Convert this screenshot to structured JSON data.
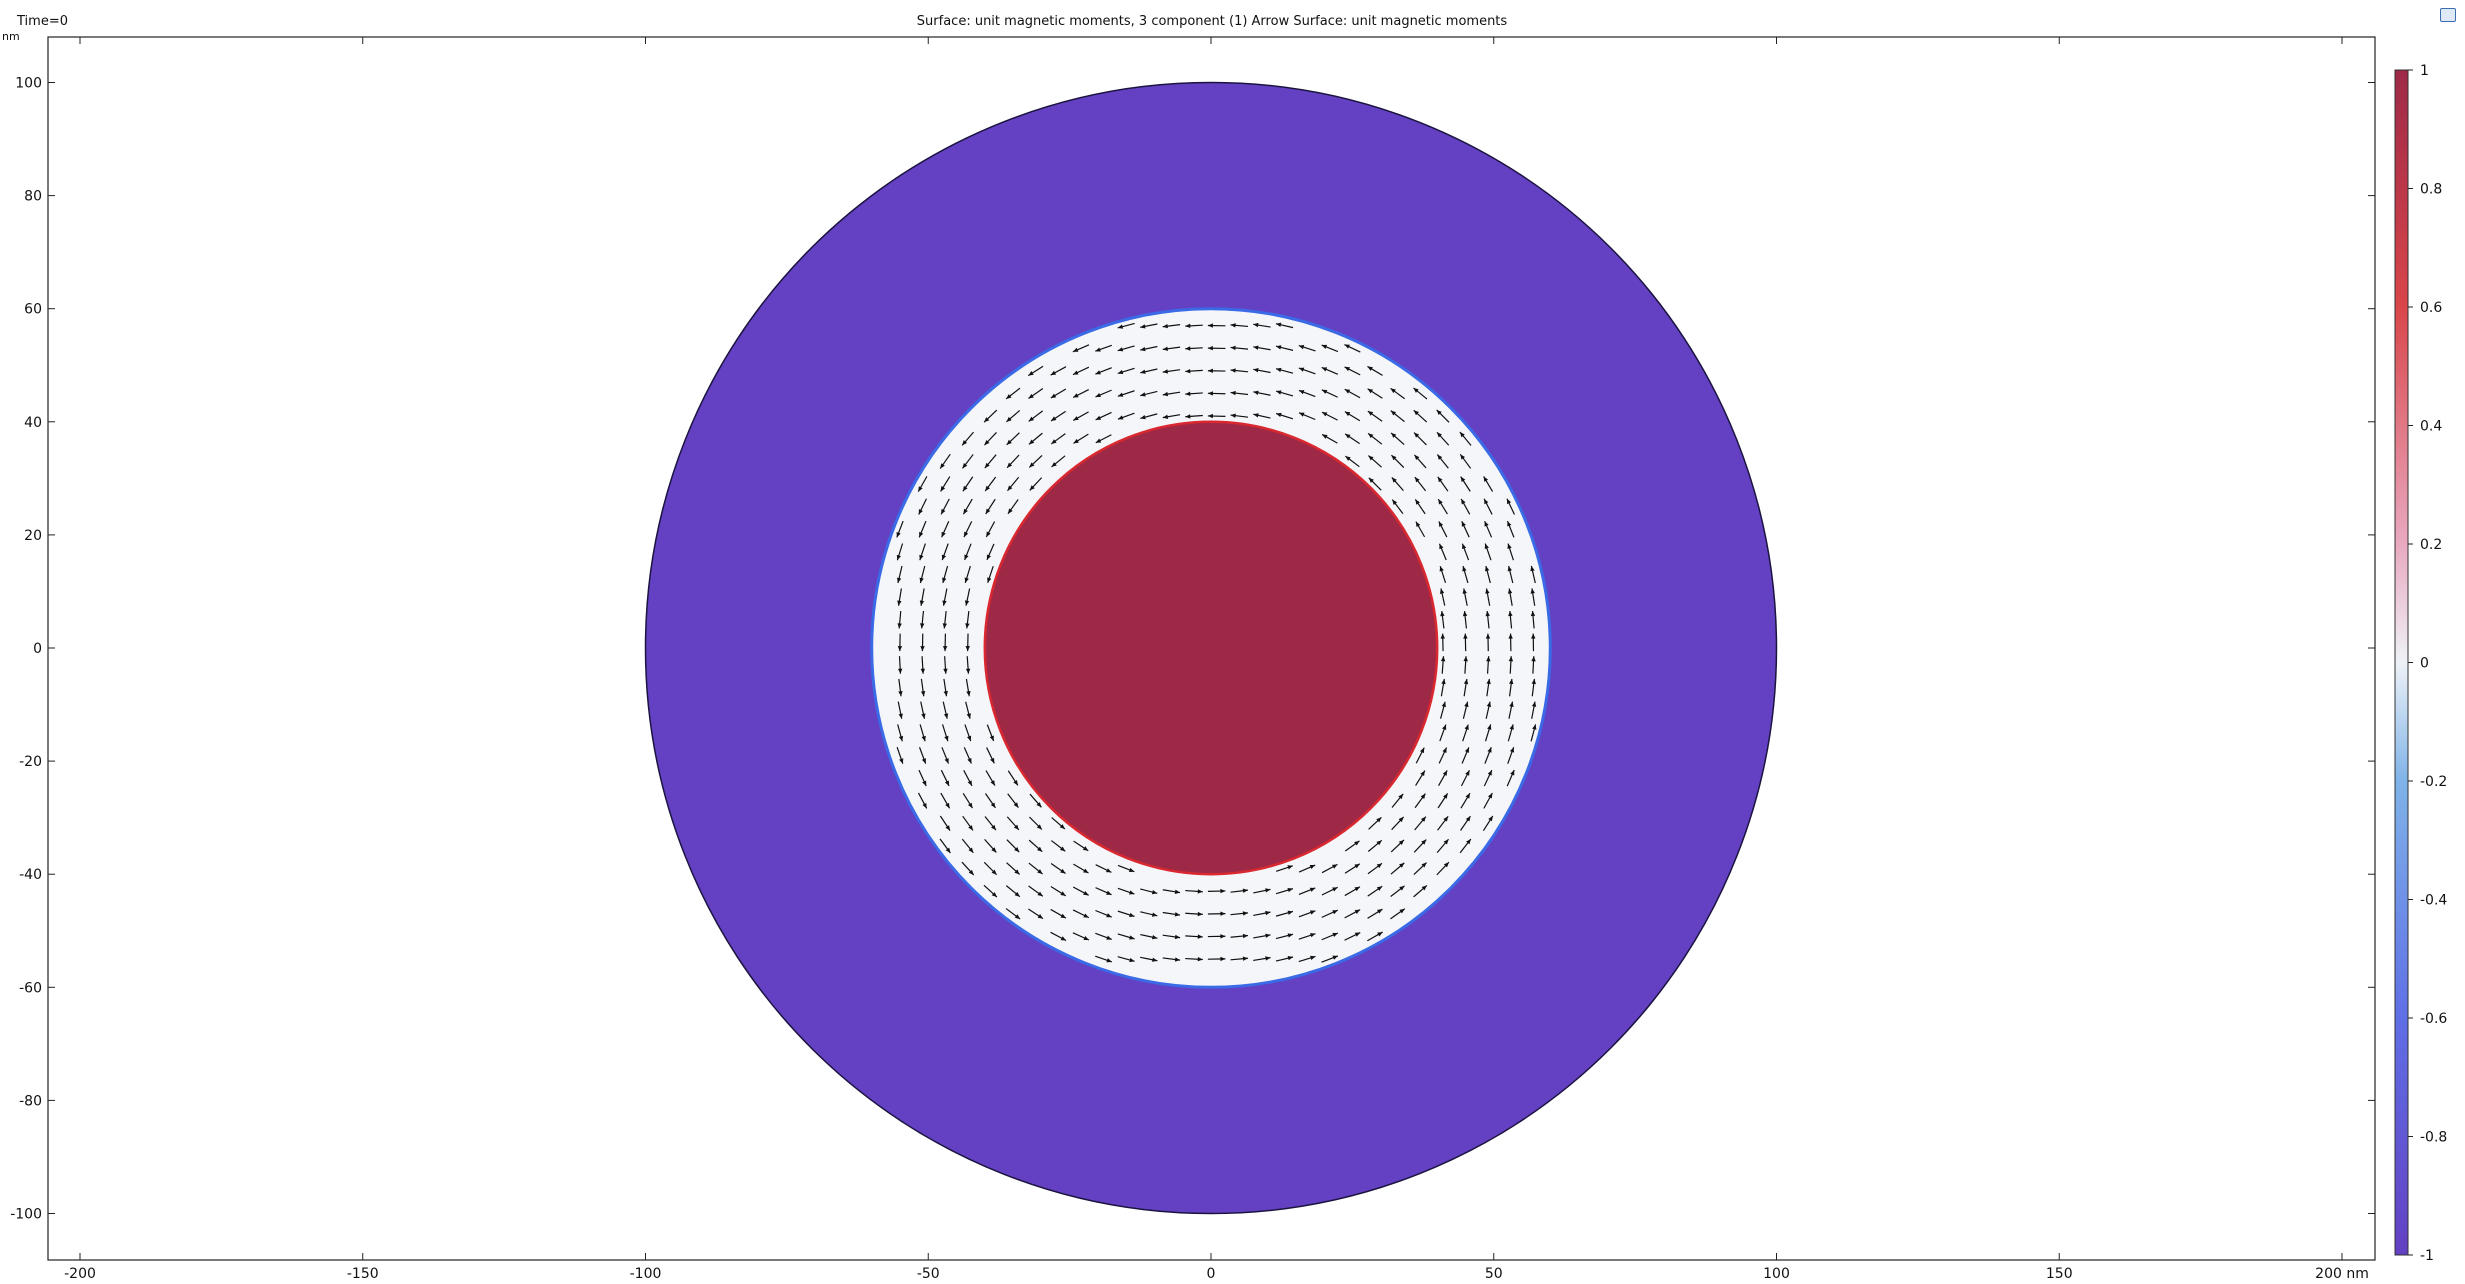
{
  "header": {
    "time_label": "Time=0",
    "plot_title": "Surface: unit magnetic moments, 3 component (1)  Arrow Surface: unit magnetic moments",
    "unit_label": "nm"
  },
  "chart_data": {
    "type": "heatmap",
    "title": "Surface: unit magnetic moments, 3 component (1)  Arrow Surface: unit magnetic moments",
    "xlim": [
      -205,
      205
    ],
    "ylim": [
      -108,
      108
    ],
    "x_ticks": [
      -200,
      -150,
      -100,
      -50,
      0,
      50,
      100,
      150,
      200
    ],
    "x_tick_labels": [
      "-200",
      "-150",
      "-100",
      "-50",
      "0",
      "50",
      "100",
      "150",
      "200 nm"
    ],
    "y_ticks": [
      100,
      80,
      60,
      40,
      20,
      0,
      -20,
      -40,
      -60,
      -80,
      -100
    ],
    "y_tick_labels": [
      "100",
      "80",
      "60",
      "40",
      "20",
      "0",
      "-20",
      "-40",
      "-60",
      "-80",
      "-100"
    ],
    "regions": [
      {
        "name": "outer annulus",
        "r_inner": 60,
        "r_outer": 100,
        "value": -0.84
      },
      {
        "name": "vortex ring",
        "r_inner": 40,
        "r_outer": 60,
        "value": 0
      },
      {
        "name": "core disk",
        "r_inner": 0,
        "r_outer": 40,
        "value": 0.98
      }
    ],
    "arrows": {
      "field": "unit magnetic moments",
      "pattern": "counter-clockwise vortex",
      "r_min": 41,
      "r_max": 59,
      "spacing": 4
    },
    "colorbar": {
      "range": [
        -1,
        1
      ],
      "ticks": [
        1,
        0.8,
        0.6,
        0.4,
        0.2,
        0,
        -0.2,
        -0.4,
        -0.6,
        -0.8,
        -1
      ],
      "tick_labels": [
        "1",
        "0.8",
        "0.6",
        "0.4",
        "0.2",
        "0",
        "-0.2",
        "-0.4",
        "-0.6",
        "-0.8",
        "-1"
      ],
      "colors": [
        "#6340c2",
        "#5f6fe6",
        "#7fb3e8",
        "#eef2f7",
        "#e9a9c0",
        "#d9464a",
        "#9e2947"
      ]
    },
    "colors": {
      "outer": "#6441c3",
      "ring": "#f4f6f9",
      "core": "#9e2946",
      "outer_edge": "#3a6ae6",
      "core_edge": "#d9282f",
      "arrow": "#111111"
    }
  }
}
